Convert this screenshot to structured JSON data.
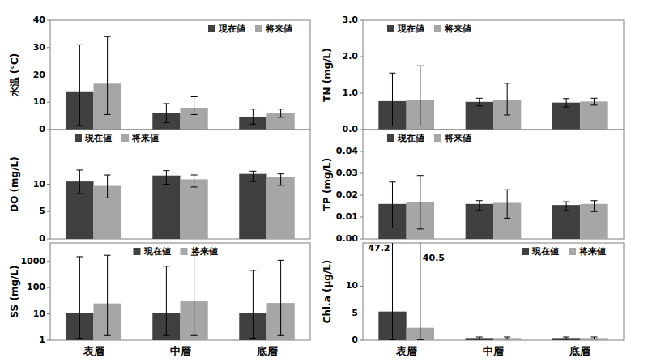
{
  "chart_data": [
    {
      "type": "bar",
      "ylabel": "水温 (℃)",
      "categories": [
        "表層",
        "中層",
        "底層"
      ],
      "ylim": [
        0,
        40
      ],
      "yticks": [
        0,
        10,
        20,
        30,
        40
      ],
      "legend": "upper right",
      "tick_labels": "y",
      "series": [
        {
          "name": "現在値",
          "color": "#404040",
          "values": [
            14,
            6,
            4.5
          ],
          "min": [
            1.5,
            2.5,
            2
          ],
          "max": [
            31,
            9.5,
            7.5
          ]
        },
        {
          "name": "将来値",
          "color": "#a6a6a6",
          "values": [
            16.8,
            8,
            6
          ],
          "min": [
            5.5,
            5.5,
            4.5
          ],
          "max": [
            34,
            12,
            7.5
          ]
        }
      ]
    },
    {
      "type": "bar",
      "ylabel": "TN (mg/L)",
      "categories": [
        "表層",
        "中層",
        "底層"
      ],
      "ylim": [
        0,
        3
      ],
      "yticks": [
        {
          "value": 0,
          "label": "0.0"
        },
        {
          "value": 1,
          "label": "1.0"
        },
        {
          "value": 2,
          "label": "2.0"
        },
        {
          "value": 3,
          "label": "3.0"
        }
      ],
      "legend": "upper left",
      "tick_labels": "y",
      "series": [
        {
          "name": "現在値",
          "color": "#404040",
          "values": [
            0.78,
            0.76,
            0.74
          ],
          "min": [
            0.1,
            0.65,
            0.62
          ],
          "max": [
            1.55,
            0.86,
            0.85
          ]
        },
        {
          "name": "将来値",
          "color": "#a6a6a6",
          "values": [
            0.82,
            0.8,
            0.77
          ],
          "min": [
            0.1,
            0.4,
            0.67
          ],
          "max": [
            1.75,
            1.27,
            0.86
          ]
        }
      ]
    },
    {
      "type": "bar",
      "ylabel": "DO (mg/L)",
      "categories": [
        "表層",
        "中層",
        "底層"
      ],
      "ylim": [
        0,
        20
      ],
      "yticks": [
        0,
        5,
        10
      ],
      "legend": "upper left",
      "tick_labels": "y",
      "series": [
        {
          "name": "現在値",
          "color": "#404040",
          "values": [
            10.5,
            11.6,
            11.9
          ],
          "min": [
            8.3,
            10,
            10.5
          ],
          "max": [
            12.6,
            12.5,
            12.4
          ]
        },
        {
          "name": "将来値",
          "color": "#a6a6a6",
          "values": [
            9.7,
            10.9,
            11.3
          ],
          "min": [
            7.5,
            9.5,
            9.8
          ],
          "max": [
            11.7,
            11.7,
            11.9
          ]
        }
      ]
    },
    {
      "type": "bar",
      "ylabel": "TP (mg/L)",
      "categories": [
        "表層",
        "中層",
        "底層"
      ],
      "ylim": [
        0,
        0.05
      ],
      "yticks": [
        {
          "value": 0,
          "label": "0.00"
        },
        {
          "value": 0.01,
          "label": "0.01"
        },
        {
          "value": 0.02,
          "label": "0.02"
        },
        {
          "value": 0.03,
          "label": "0.03"
        },
        {
          "value": 0.04,
          "label": "0.04"
        }
      ],
      "legend": "upper left",
      "tick_labels": "y",
      "series": [
        {
          "name": "現在値",
          "color": "#404040",
          "values": [
            0.016,
            0.016,
            0.0155
          ],
          "min": [
            0.005,
            0.013,
            0.013
          ],
          "max": [
            0.026,
            0.0175,
            0.017
          ]
        },
        {
          "name": "将来値",
          "color": "#a6a6a6",
          "values": [
            0.017,
            0.0165,
            0.016
          ],
          "min": [
            0.0045,
            0.0095,
            0.0125
          ],
          "max": [
            0.029,
            0.0225,
            0.0175
          ]
        }
      ]
    },
    {
      "type": "bar",
      "ylabel": "SS (mg/L)",
      "categories": [
        "表層",
        "中層",
        "底層"
      ],
      "log": "y",
      "ylim": [
        1,
        5000
      ],
      "yticks": [
        1,
        10,
        100,
        1000
      ],
      "legend": "upper center",
      "series": [
        {
          "name": "現在値",
          "color": "#404040",
          "values": [
            10.5,
            11,
            11
          ],
          "min": [
            1.2,
            1.5,
            1.2
          ],
          "max": [
            1500,
            650,
            450
          ]
        },
        {
          "name": "将来値",
          "color": "#a6a6a6",
          "values": [
            25,
            30,
            26
          ],
          "min": [
            1.5,
            1.5,
            1.5
          ],
          "max": [
            1700,
            1700,
            1100
          ]
        }
      ]
    },
    {
      "type": "bar",
      "ylabel": "Chl.a (μg/L)",
      "categories": [
        "表層",
        "中層",
        "底層"
      ],
      "ylim": [
        0,
        18
      ],
      "yticks": [
        0,
        5,
        10
      ],
      "legend": "upper right",
      "series": [
        {
          "name": "現在値",
          "color": "#404040",
          "values": [
            5.3,
            0.4,
            0.4
          ],
          "min": [
            0.05,
            0.2,
            0.2
          ],
          "max": [
            47.2,
            0.6,
            0.6
          ]
        },
        {
          "name": "将来値",
          "color": "#a6a6a6",
          "values": [
            2.3,
            0.4,
            0.4
          ],
          "min": [
            0.05,
            0.2,
            0.2
          ],
          "max": [
            40.5,
            0.6,
            0.6
          ]
        }
      ]
    }
  ]
}
